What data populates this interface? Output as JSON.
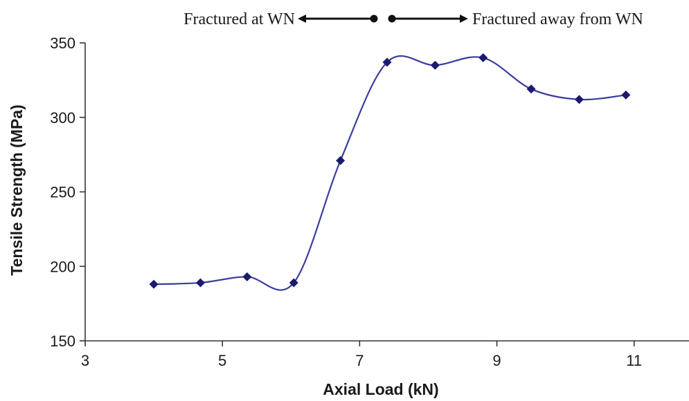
{
  "chart_data": {
    "type": "line",
    "title": "",
    "xlabel": "Axial Load (kN)",
    "ylabel": "Tensile Strength (MPa)",
    "xlim": [
      3,
      11.8
    ],
    "ylim": [
      150,
      350
    ],
    "xticks": [
      3,
      5,
      7,
      9,
      11
    ],
    "yticks": [
      150,
      200,
      250,
      300,
      350
    ],
    "grid": false,
    "series": [
      {
        "color": "#3b3b9e",
        "marker_color": "#1a1a6e",
        "marker": "diamond",
        "smooth": true,
        "x": [
          4.0,
          4.68,
          5.36,
          6.04,
          6.72,
          7.4,
          8.1,
          8.8,
          9.5,
          10.2,
          10.88
        ],
        "y": [
          188,
          189,
          193,
          189,
          271,
          337,
          335,
          340,
          319,
          312,
          315
        ]
      }
    ],
    "annotations": {
      "left_text": "Fractured at WN",
      "right_text": "Fractured away from WN"
    }
  }
}
